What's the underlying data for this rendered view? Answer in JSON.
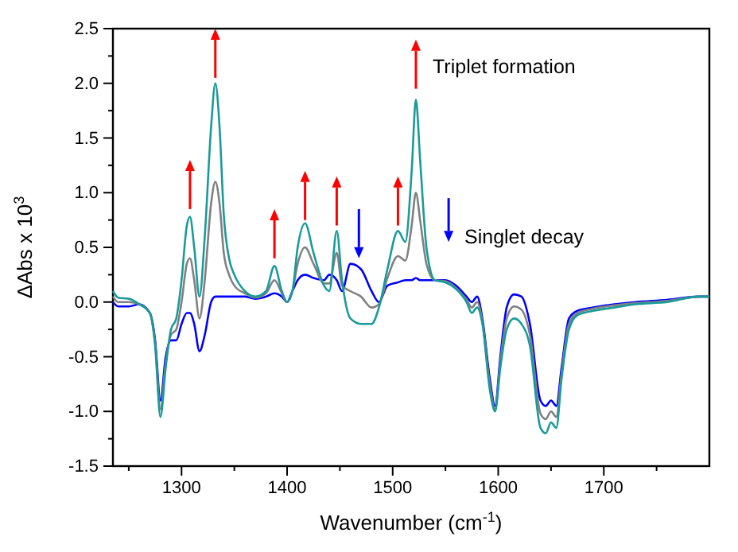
{
  "chart_data": {
    "type": "line",
    "xlabel": "Wavenumber (cm$^{-1}$)",
    "ylabel": "ΔAbs x 10$^{3}$",
    "xlim": [
      1235,
      1800
    ],
    "xticks": [
      {
        "value": 1250,
        "label": null
      },
      1300,
      {
        "value": 1350,
        "label": null
      },
      1400,
      {
        "value": 1450,
        "label": null
      },
      1500,
      {
        "value": 1550,
        "label": null
      },
      1600,
      {
        "value": 1650,
        "label": null
      },
      1700,
      {
        "value": 1750,
        "label": null
      }
    ],
    "ylim": [
      -1.5,
      2.5
    ],
    "yticks": [
      {
        "value": -1.5,
        "label": "-1.5"
      },
      {
        "value": -1.25,
        "label": null
      },
      {
        "value": -1,
        "label": "-1.0"
      },
      {
        "value": -0.75,
        "label": null
      },
      {
        "value": -0.5,
        "label": "-0.5"
      },
      {
        "value": -0.25,
        "label": null
      },
      {
        "value": 0,
        "label": "0.0"
      },
      {
        "value": 0.25,
        "label": null
      },
      {
        "value": 0.5,
        "label": "0.5"
      },
      {
        "value": 0.75,
        "label": null
      },
      {
        "value": 1,
        "label": "1.0"
      },
      {
        "value": 1.25,
        "label": null
      },
      {
        "value": 1.5,
        "label": "1.5"
      },
      {
        "value": 1.75,
        "label": null
      },
      {
        "value": 2,
        "label": "2.0"
      },
      {
        "value": 2.25,
        "label": null
      },
      {
        "value": 2.5,
        "label": "2.5"
      }
    ],
    "grid": false,
    "marker": "none",
    "line_style": "solid",
    "x": [
      1235,
      1240,
      1250,
      1260,
      1270,
      1275,
      1280,
      1285,
      1290,
      1295,
      1300,
      1305,
      1308,
      1312,
      1317,
      1322,
      1328,
      1332,
      1336,
      1340,
      1345,
      1350,
      1360,
      1370,
      1380,
      1388,
      1395,
      1400,
      1405,
      1410,
      1417,
      1425,
      1435,
      1440,
      1447,
      1452,
      1460,
      1470,
      1480,
      1487,
      1495,
      1505,
      1512,
      1518,
      1522,
      1526,
      1532,
      1540,
      1550,
      1560,
      1570,
      1575,
      1580,
      1585,
      1592,
      1597,
      1602,
      1608,
      1615,
      1622,
      1630,
      1640,
      1645,
      1650,
      1655,
      1660,
      1667,
      1675,
      1690,
      1710,
      1730,
      1760,
      1790,
      1800
    ],
    "series": [
      {
        "color": "#0000ff",
        "values": [
          0,
          -0.04,
          -0.04,
          -0.02,
          -0.1,
          -0.35,
          -0.9,
          -0.5,
          -0.35,
          -0.35,
          -0.2,
          -0.1,
          -0.1,
          -0.2,
          -0.45,
          -0.3,
          0,
          0.05,
          0.05,
          0.05,
          0.05,
          0.05,
          0.05,
          0.03,
          0.05,
          0.08,
          0.05,
          0,
          0.1,
          0.2,
          0.25,
          0.22,
          0.2,
          0.25,
          0.2,
          0.1,
          0.35,
          0.3,
          0.1,
          0,
          0.15,
          0.18,
          0.2,
          0.2,
          0.22,
          0.2,
          0.2,
          0.2,
          0.2,
          0.15,
          0.05,
          0,
          0.05,
          -0.15,
          -0.7,
          -0.95,
          -0.5,
          -0.05,
          0.07,
          0.05,
          -0.2,
          -0.9,
          -0.95,
          -0.9,
          -0.95,
          -0.6,
          -0.15,
          -0.08,
          -0.05,
          -0.02,
          0,
          0.02,
          0.05,
          0.05
        ]
      },
      {
        "color": "#808080",
        "values": [
          0.05,
          0,
          0,
          -0.02,
          -0.1,
          -0.38,
          -0.98,
          -0.55,
          -0.3,
          -0.25,
          0,
          0.35,
          0.4,
          0.2,
          -0.15,
          0.2,
          0.9,
          1.1,
          0.9,
          0.45,
          0.25,
          0.15,
          0.08,
          0.04,
          0.08,
          0.2,
          0.08,
          0,
          0.1,
          0.35,
          0.5,
          0.35,
          0.17,
          0.17,
          0.45,
          0.15,
          0.1,
          0.05,
          -0.05,
          -0.02,
          0.22,
          0.42,
          0.38,
          0.7,
          1,
          0.75,
          0.35,
          0.2,
          0.19,
          0.13,
          0.02,
          -0.05,
          0,
          -0.18,
          -0.75,
          -0.98,
          -0.55,
          -0.15,
          -0.04,
          -0.07,
          -0.3,
          -1.02,
          -1.07,
          -1,
          -1.05,
          -0.65,
          -0.2,
          -0.1,
          -0.06,
          -0.03,
          -0.01,
          0.01,
          0.05,
          0.05
        ]
      },
      {
        "color": "#1a9a9a",
        "values": [
          0.1,
          0.04,
          0.03,
          -0.02,
          -0.1,
          -0.4,
          -1.05,
          -0.6,
          -0.25,
          -0.15,
          0.2,
          0.7,
          0.78,
          0.5,
          0.05,
          0.6,
          1.6,
          2,
          1.6,
          0.8,
          0.4,
          0.25,
          0.1,
          0.05,
          0.1,
          0.33,
          0.1,
          0,
          0.1,
          0.5,
          0.72,
          0.45,
          0.15,
          0.1,
          0.65,
          0.2,
          -0.15,
          -0.2,
          -0.2,
          -0.05,
          0.3,
          0.65,
          0.55,
          1.2,
          1.85,
          1.3,
          0.5,
          0.2,
          0.18,
          0.12,
          0,
          -0.1,
          -0.05,
          -0.2,
          -0.8,
          -1,
          -0.6,
          -0.25,
          -0.15,
          -0.2,
          -0.4,
          -1.15,
          -1.2,
          -1.1,
          -1.15,
          -0.7,
          -0.25,
          -0.12,
          -0.08,
          -0.05,
          -0.02,
          0,
          0.05,
          0.05
        ]
      }
    ],
    "annotations": [
      "Triplet formation",
      "Singlet decay"
    ]
  }
}
